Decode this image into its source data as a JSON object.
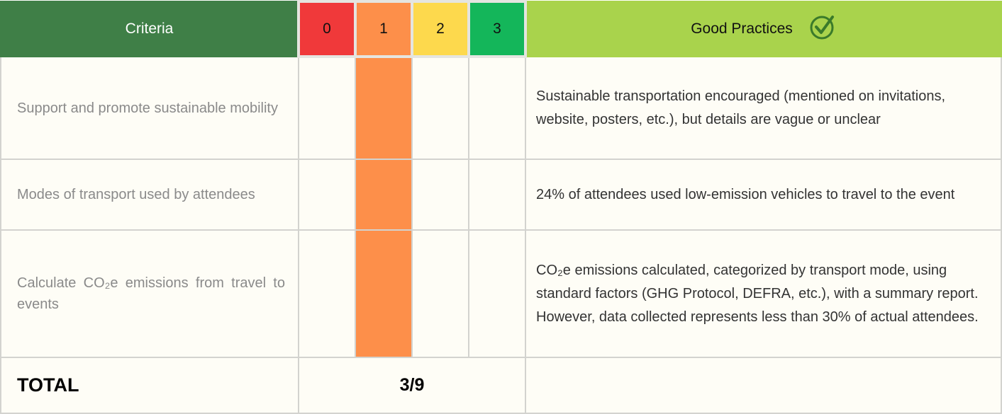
{
  "header": {
    "criteria": "Criteria",
    "scores": [
      "0",
      "1",
      "2",
      "3"
    ],
    "score_colors": [
      "#f0393a",
      "#fd8f4a",
      "#fdd94d",
      "#14b65a"
    ],
    "good_practices": "Good Practices"
  },
  "rows": [
    {
      "criteria": "Support and promote sustainable mobility",
      "score": 1,
      "good_practice": "Sustainable transportation encouraged (mentioned on invitations, website, posters, etc.), but details are vague or unclear"
    },
    {
      "criteria": "Modes of transport used by attendees",
      "score": 1,
      "good_practice": "24% of attendees used low-emission vehicles to travel to the event"
    },
    {
      "criteria": "Calculate CO₂e emissions from travel to events",
      "score": 1,
      "good_practice": "CO₂e emissions calculated, categorized by transport mode, using standard factors (GHG Protocol, DEFRA, etc.), with a summary report. However, data collected represents less than 30% of actual attendees."
    }
  ],
  "total": {
    "label": "TOTAL",
    "value": "3/9"
  }
}
